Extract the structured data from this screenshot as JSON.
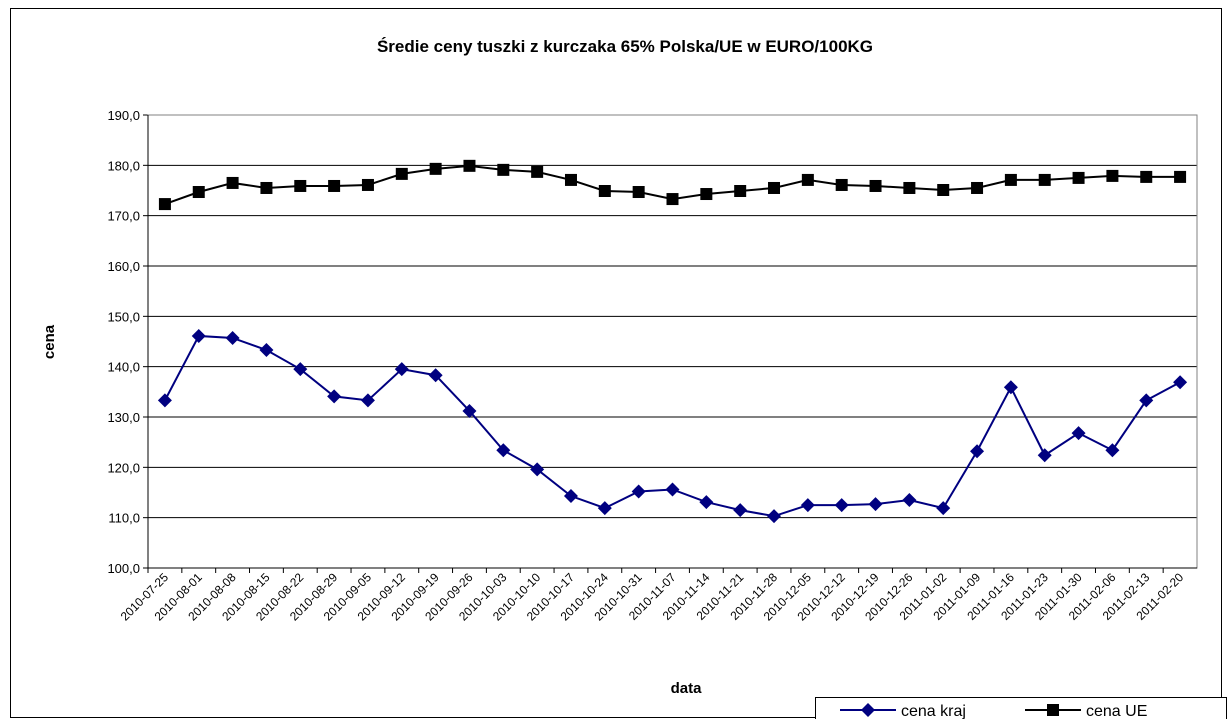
{
  "chart_data": {
    "type": "line",
    "title": "Średie ceny tuszki z kurczaka 65% Polska/UE w EURO/100KG",
    "x_label": "data",
    "y_label": "cena",
    "categories": [
      "2010-07-25",
      "2010-08-01",
      "2010-08-08",
      "2010-08-15",
      "2010-08-22",
      "2010-08-29",
      "2010-09-05",
      "2010-09-12",
      "2010-09-19",
      "2010-09-26",
      "2010-10-03",
      "2010-10-10",
      "2010-10-17",
      "2010-10-24",
      "2010-10-31",
      "2010-11-07",
      "2010-11-14",
      "2010-11-21",
      "2010-11-28",
      "2010-12-05",
      "2010-12-12",
      "2010-12-19",
      "2010-12-26",
      "2011-01-02",
      "2011-01-09",
      "2011-01-16",
      "2011-01-23",
      "2011-01-30",
      "2011-02-06",
      "2011-02-13",
      "2011-02-20"
    ],
    "series": [
      {
        "name": "cena kraj",
        "color": "#000080",
        "marker": "diamond",
        "values": [
          133.3,
          146.1,
          145.7,
          143.3,
          139.5,
          134.1,
          133.3,
          139.5,
          138.3,
          131.2,
          123.4,
          119.6,
          114.3,
          111.9,
          115.2,
          115.6,
          113.1,
          111.5,
          110.3,
          112.5,
          112.5,
          112.7,
          113.5,
          111.9,
          123.2,
          135.9,
          122.4,
          126.8,
          123.4,
          133.3,
          136.9
        ]
      },
      {
        "name": "cena UE",
        "color": "#000000",
        "marker": "square",
        "values": [
          172.3,
          174.7,
          176.5,
          175.5,
          175.9,
          175.9,
          176.1,
          178.3,
          179.3,
          179.9,
          179.1,
          178.7,
          177.1,
          174.9,
          174.7,
          173.3,
          174.3,
          174.9,
          175.5,
          177.1,
          176.1,
          175.9,
          175.5,
          175.1,
          175.5,
          177.1,
          177.1,
          177.5,
          177.9,
          177.7,
          177.7
        ]
      }
    ],
    "ylim": [
      100,
      190
    ],
    "yticks": [
      {
        "value": 100,
        "label": "100,0"
      },
      {
        "value": 110,
        "label": "110,0"
      },
      {
        "value": 120,
        "label": "120,0"
      },
      {
        "value": 130,
        "label": "130,0"
      },
      {
        "value": 140,
        "label": "140,0"
      },
      {
        "value": 150,
        "label": "150,0"
      },
      {
        "value": 160,
        "label": "160,0"
      },
      {
        "value": 170,
        "label": "170,0"
      },
      {
        "value": 180,
        "label": "180,0"
      },
      {
        "value": 190,
        "label": "190,0"
      }
    ],
    "grid": true,
    "legend_position": "bottom-right"
  }
}
